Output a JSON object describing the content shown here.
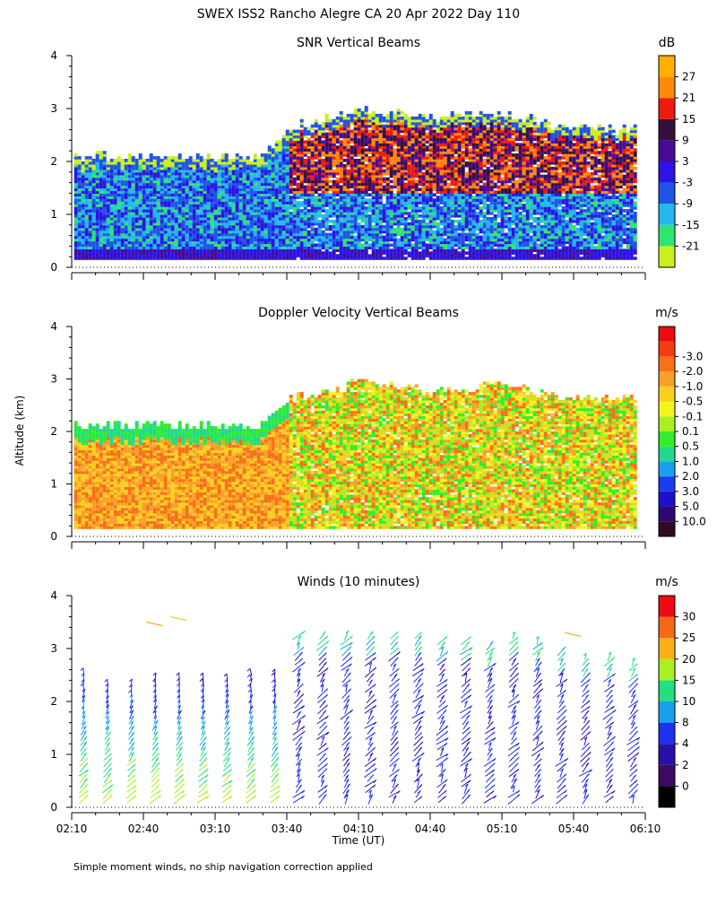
{
  "figure": {
    "title": "SWEX ISS2 Rancho Alegre CA  20 Apr 2022 Day 110",
    "ylabel": "Altitude (km)",
    "xlabel": "Time (UT)",
    "footnote": "Simple moment winds, no ship navigation correction applied"
  },
  "chart_data": [
    {
      "type": "heatmap",
      "title": "SNR Vertical Beams",
      "ylim": [
        0,
        4
      ],
      "yticks": [
        "0",
        "1",
        "2",
        "3",
        "4"
      ],
      "x_range": [
        "02:10",
        "06:10"
      ],
      "colorbar": {
        "unit": "dB",
        "labels": [
          "-21",
          "-15",
          "-9",
          "-3",
          "3",
          "9",
          "15",
          "21",
          "27"
        ],
        "colors": [
          "#c8f01e",
          "#2ee66e",
          "#22b8ee",
          "#1e55e8",
          "#2c14e6",
          "#4a0a94",
          "#35103c",
          "#ee1a10",
          "#ff8a0a",
          "#ffb000"
        ]
      },
      "data_top_km": {
        "times": [
          "02:10",
          "03:00",
          "03:30",
          "03:40",
          "04:10",
          "04:40",
          "05:10",
          "05:40",
          "06:10"
        ],
        "values": [
          2.1,
          2.05,
          2.1,
          2.6,
          3.0,
          2.8,
          2.9,
          2.6,
          2.6
        ]
      },
      "grid": false
    },
    {
      "type": "heatmap",
      "title": "Doppler Velocity Vertical Beams",
      "ylim": [
        0,
        4
      ],
      "yticks": [
        "0",
        "1",
        "2",
        "3",
        "4"
      ],
      "x_range": [
        "02:10",
        "06:10"
      ],
      "colorbar": {
        "unit": "m/s",
        "labels": [
          "10.0",
          "5.0",
          "3.0",
          "2.0",
          "1.0",
          "0.5",
          "0.1",
          "-0.1",
          "-0.5",
          "-1.0",
          "-2.0",
          "-3.0"
        ],
        "colors": [
          "#300a24",
          "#2a0a70",
          "#1e10c8",
          "#1a3cf0",
          "#18a0f0",
          "#22d890",
          "#30ee28",
          "#a8f020",
          "#f4f41e",
          "#f8d020",
          "#f8a028",
          "#f87018",
          "#f43c10",
          "#ee0a12"
        ]
      },
      "data_top_km": {
        "times": [
          "02:10",
          "03:00",
          "03:30",
          "03:40",
          "04:10",
          "04:40",
          "05:10",
          "05:40",
          "06:10"
        ],
        "values": [
          2.1,
          2.1,
          2.1,
          2.6,
          2.9,
          2.75,
          2.85,
          2.6,
          2.6
        ]
      },
      "grid": false
    },
    {
      "type": "scatter",
      "title": "Winds (10 minutes)",
      "ylim": [
        0,
        4
      ],
      "yticks": [
        "0",
        "1",
        "2",
        "3",
        "4"
      ],
      "xticks": [
        "02:10",
        "02:40",
        "03:10",
        "03:40",
        "04:10",
        "04:40",
        "05:10",
        "05:40",
        "06:10"
      ],
      "colorbar": {
        "unit": "m/s",
        "labels": [
          "0",
          "2",
          "4",
          "8",
          "10",
          "15",
          "20",
          "25",
          "30"
        ],
        "colors": [
          "#000000",
          "#3c0a60",
          "#2810a8",
          "#1e30f0",
          "#18a0f0",
          "#22e080",
          "#a8f020",
          "#f8b018",
          "#f86818",
          "#ee0a12"
        ]
      },
      "profile_times": [
        "02:15",
        "02:25",
        "02:35",
        "02:45",
        "02:55",
        "03:05",
        "03:15",
        "03:25",
        "03:35",
        "03:45",
        "03:55",
        "04:05",
        "04:15",
        "04:25",
        "04:35",
        "04:45",
        "04:55",
        "05:05",
        "05:15",
        "05:25",
        "05:35",
        "05:45",
        "05:55",
        "06:05"
      ],
      "profile_top_km": [
        2.6,
        2.4,
        2.4,
        2.55,
        2.5,
        2.55,
        2.55,
        2.6,
        2.6,
        3.3,
        3.3,
        3.3,
        3.3,
        3.3,
        3.3,
        3.2,
        3.2,
        3.1,
        3.3,
        3.2,
        3.0,
        2.9,
        2.9,
        2.85
      ],
      "grid": false
    }
  ]
}
